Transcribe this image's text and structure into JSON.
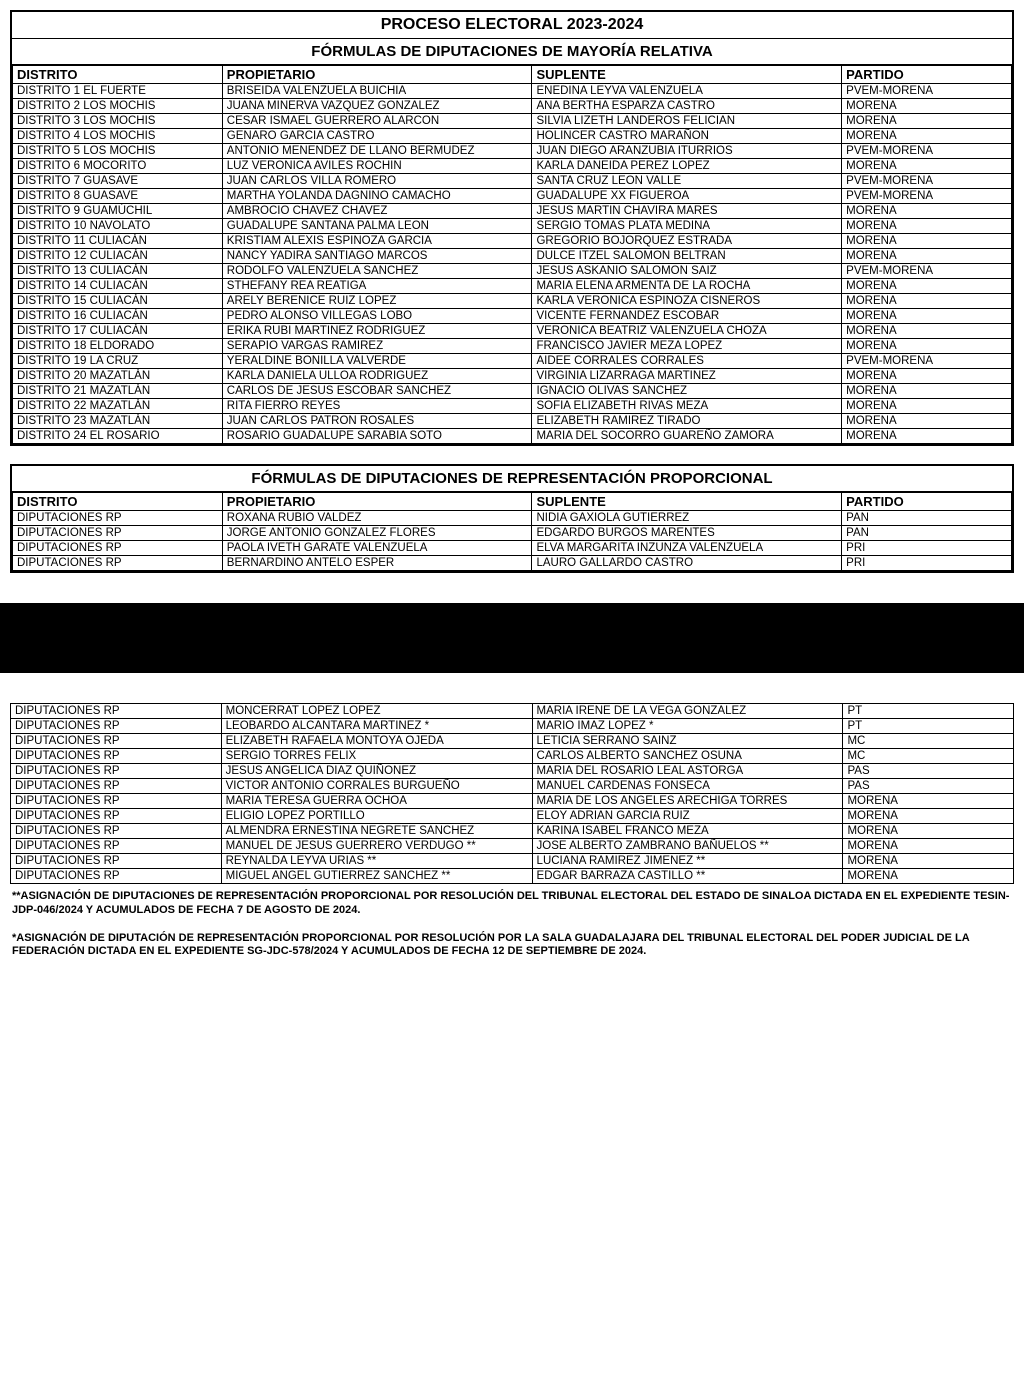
{
  "table1": {
    "title": "PROCESO ELECTORAL 2023-2024",
    "subtitle": "FÓRMULAS DE DIPUTACIONES DE MAYORÍA RELATIVA",
    "headers": {
      "c1": "DISTRITO",
      "c2": "PROPIETARIO",
      "c3": "SUPLENTE",
      "c4": "PARTIDO"
    },
    "rows": [
      [
        "DISTRITO 1 EL FUERTE",
        "BRISEIDA VALENZUELA BUICHIA",
        "ENEDINA LEYVA VALENZUELA",
        "PVEM-MORENA"
      ],
      [
        "DISTRITO 2 LOS MOCHIS",
        "JUANA MINERVA VAZQUEZ GONZALEZ",
        "ANA BERTHA ESPARZA CASTRO",
        "MORENA"
      ],
      [
        "DISTRITO 3 LOS MOCHIS",
        "CESAR ISMAEL GUERRERO ALARCON",
        "SILVIA LIZETH LANDEROS FELICIAN",
        "MORENA"
      ],
      [
        "DISTRITO 4 LOS MOCHIS",
        "GENARO GARCIA CASTRO",
        "HOLINCER CASTRO MARAÑON",
        "MORENA"
      ],
      [
        "DISTRITO 5 LOS MOCHIS",
        "ANTONIO MENENDEZ DE LLANO BERMUDEZ",
        "JUAN DIEGO ARANZUBIA ITURRIOS",
        "PVEM-MORENA"
      ],
      [
        "DISTRITO 6 MOCORITO",
        "LUZ VERONICA AVILES ROCHIN",
        "KARLA DANEIDA PEREZ LOPEZ",
        "MORENA"
      ],
      [
        "DISTRITO 7 GUASAVE",
        "JUAN CARLOS VILLA ROMERO",
        "SANTA CRUZ LEON VALLE",
        "PVEM-MORENA"
      ],
      [
        "DISTRITO 8 GUASAVE",
        "MARTHA YOLANDA DAGNINO CAMACHO",
        "GUADALUPE XX FIGUEROA",
        "PVEM-MORENA"
      ],
      [
        "DISTRITO 9 GUAMÚCHIL",
        "AMBROCIO CHAVEZ CHAVEZ",
        "JESUS MARTIN CHAVIRA MARES",
        "MORENA"
      ],
      [
        "DISTRITO 10 NAVOLATO",
        "GUADALUPE SANTANA PALMA LEON",
        "SERGIO TOMAS PLATA MEDINA",
        "MORENA"
      ],
      [
        "DISTRITO 11 CULIACÁN",
        "KRISTIAM ALEXIS ESPINOZA GARCIA",
        "GREGORIO BOJORQUEZ ESTRADA",
        "MORENA"
      ],
      [
        "DISTRITO 12 CULIACÁN",
        "NANCY YADIRA SANTIAGO MARCOS",
        "DULCE ITZEL SALOMON BELTRAN",
        "MORENA"
      ],
      [
        "DISTRITO 13 CULIACÁN",
        "RODOLFO VALENZUELA SANCHEZ",
        "JESUS ASKANIO SALOMON SAIZ",
        "PVEM-MORENA"
      ],
      [
        "DISTRITO 14 CULIACÁN",
        "STHEFANY REA REATIGA",
        "MARIA ELENA ARMENTA DE LA ROCHA",
        "MORENA"
      ],
      [
        "DISTRITO 15 CULIACÁN",
        "ARELY BERENICE RUIZ LOPEZ",
        "KARLA VERONICA ESPINOZA CISNEROS",
        "MORENA"
      ],
      [
        "DISTRITO 16 CULIACÁN",
        "PEDRO ALONSO VILLEGAS LOBO",
        "VICENTE FERNANDEZ ESCOBAR",
        "MORENA"
      ],
      [
        "DISTRITO 17 CULIACÁN",
        "ERIKA RUBI MARTINEZ RODRIGUEZ",
        "VERONICA BEATRIZ VALENZUELA CHOZA",
        "MORENA"
      ],
      [
        "DISTRITO 18 ELDORADO",
        "SERAPIO VARGAS RAMIREZ",
        "FRANCISCO JAVIER MEZA LOPEZ",
        "MORENA"
      ],
      [
        "DISTRITO 19 LA CRUZ",
        "YERALDINE BONILLA VALVERDE",
        "AIDEE CORRALES CORRALES",
        "PVEM-MORENA"
      ],
      [
        "DISTRITO 20 MAZATLÁN",
        "KARLA DANIELA ULLOA RODRIGUEZ",
        "VIRGINIA LIZARRAGA MARTINEZ",
        "MORENA"
      ],
      [
        "DISTRITO 21 MAZATLÁN",
        "CARLOS DE JESUS ESCOBAR SANCHEZ",
        "IGNACIO OLIVAS SANCHEZ",
        "MORENA"
      ],
      [
        "DISTRITO 22 MAZATLÁN",
        "RITA FIERRO REYES",
        "SOFIA ELIZABETH RIVAS MEZA",
        "MORENA"
      ],
      [
        "DISTRITO 23 MAZATLÁN",
        "JUAN CARLOS PATRON ROSALES",
        "ELIZABETH RAMIREZ TIRADO",
        "MORENA"
      ],
      [
        "DISTRITO 24 EL ROSARIO",
        "ROSARIO GUADALUPE SARABIA SOTO",
        "MARIA DEL SOCORRO GUAREÑO ZAMORA",
        "MORENA"
      ]
    ]
  },
  "table2": {
    "subtitle": "FÓRMULAS DE DIPUTACIONES DE REPRESENTACIÓN PROPORCIONAL",
    "headers": {
      "c1": "DISTRITO",
      "c2": "PROPIETARIO",
      "c3": "SUPLENTE",
      "c4": "PARTIDO"
    },
    "rows": [
      [
        "DIPUTACIONES RP",
        "ROXANA RUBIO VALDEZ",
        "NIDIA GAXIOLA GUTIERREZ",
        "PAN"
      ],
      [
        "DIPUTACIONES RP",
        "JORGE ANTONIO GONZALEZ FLORES",
        "EDGARDO BURGOS MARENTES",
        "PAN"
      ],
      [
        "DIPUTACIONES RP",
        "PAOLA IVETH GARATE VALENZUELA",
        "ELVA MARGARITA INZUNZA VALENZUELA",
        "PRI"
      ],
      [
        "DIPUTACIONES RP",
        "BERNARDINO ANTELO ESPER",
        "LAURO GALLARDO CASTRO",
        "PRI"
      ]
    ]
  },
  "table3": {
    "rows": [
      [
        "DIPUTACIONES RP",
        "MONCERRAT LOPEZ LOPEZ",
        "MARIA IRENE DE LA VEGA GONZALEZ",
        "PT"
      ],
      [
        "DIPUTACIONES RP",
        "LEOBARDO ALCANTARA MARTINEZ *",
        "MARIO IMAZ LOPEZ *",
        "PT"
      ],
      [
        "DIPUTACIONES RP",
        "ELIZABETH RAFAELA MONTOYA OJEDA",
        "LETICIA SERRANO SAINZ",
        "MC"
      ],
      [
        "DIPUTACIONES RP",
        "SERGIO TORRES FELIX",
        "CARLOS ALBERTO SANCHEZ OSUNA",
        "MC"
      ],
      [
        "DIPUTACIONES RP",
        "JESUS ANGELICA DIAZ QUIÑONEZ",
        "MARIA DEL ROSARIO LEAL ASTORGA",
        "PAS"
      ],
      [
        "DIPUTACIONES RP",
        "VICTOR ANTONIO CORRALES BURGUEÑO",
        "MANUEL CARDENAS FONSECA",
        "PAS"
      ],
      [
        "DIPUTACIONES RP",
        "MARIA TERESA GUERRA OCHOA",
        "MARIA DE LOS ANGELES ARECHIGA TORRES",
        "MORENA"
      ],
      [
        "DIPUTACIONES RP",
        "ELIGIO LOPEZ PORTILLO",
        "ELOY ADRIAN GARCIA RUIZ",
        "MORENA"
      ],
      [
        "DIPUTACIONES RP",
        "ALMENDRA ERNESTINA NEGRETE SANCHEZ",
        "KARINA ISABEL FRANCO MEZA",
        "MORENA"
      ],
      [
        "DIPUTACIONES RP",
        "MANUEL DE JESUS GUERRERO VERDUGO **",
        "JOSE ALBERTO ZAMBRANO BAÑUELOS **",
        "MORENA"
      ],
      [
        "DIPUTACIONES RP",
        "REYNALDA LEYVA URIAS **",
        "LUCIANA RAMIREZ JIMENEZ **",
        "MORENA"
      ],
      [
        "DIPUTACIONES RP",
        "MIGUEL ANGEL GUTIERREZ SANCHEZ **",
        "EDGAR BARRAZA CASTILLO **",
        "MORENA"
      ]
    ]
  },
  "footnotes": {
    "f1": "**ASIGNACIÓN DE DIPUTACIONES DE REPRESENTACIÓN PROPORCIONAL POR RESOLUCIÓN DEL TRIBUNAL ELECTORAL DEL ESTADO DE SINALOA DICTADA EN EL EXPEDIENTE TESIN-JDP-046/2024 Y ACUMULADOS DE FECHA 7 DE AGOSTO DE 2024.",
    "f2": "*ASIGNACIÓN DE DIPUTACIÓN DE REPRESENTACIÓN PROPORCIONAL POR RESOLUCIÓN POR LA SALA GUADALAJARA DEL TRIBUNAL ELECTORAL DEL PODER JUDICIAL DE LA FEDERACIÓN DICTADA EN EL EXPEDIENTE SG-JDC-578/2024 Y ACUMULADOS DE FECHA 12 DE SEPTIEMBRE DE 2024."
  }
}
